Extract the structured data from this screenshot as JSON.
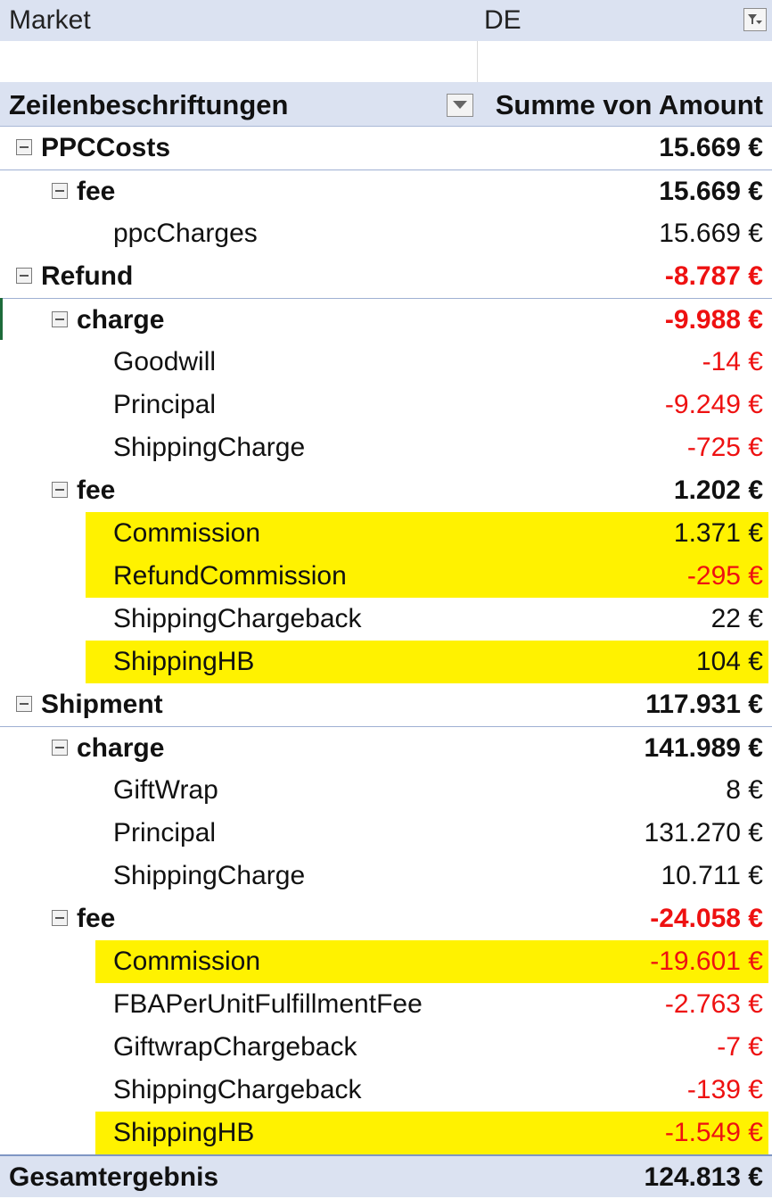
{
  "filter": {
    "label": "Market",
    "value": "DE",
    "icon": "filter-dropdown-icon"
  },
  "header": {
    "row_label": "Zeilenbeschriftungen",
    "value_label": "Summe von Amount",
    "icon": "dropdown-arrow-icon"
  },
  "rows": [
    {
      "label": "PPCCosts",
      "amount": "15.669 €",
      "level": 0,
      "bold": true,
      "collapsible": true,
      "negative": false,
      "highlight": false,
      "separator": false
    },
    {
      "label": "fee",
      "amount": "15.669 €",
      "level": 1,
      "bold": true,
      "collapsible": true,
      "negative": false,
      "highlight": false,
      "separator": true
    },
    {
      "label": "ppcCharges",
      "amount": "15.669 €",
      "level": 2,
      "bold": false,
      "collapsible": false,
      "negative": false,
      "highlight": false,
      "separator": false
    },
    {
      "label": "Refund",
      "amount": "-8.787 €",
      "level": 0,
      "bold": true,
      "collapsible": true,
      "negative": true,
      "highlight": false,
      "separator": false
    },
    {
      "label": "charge",
      "amount": "-9.988 €",
      "level": 1,
      "bold": true,
      "collapsible": true,
      "negative": true,
      "highlight": false,
      "separator": true
    },
    {
      "label": "Goodwill",
      "amount": "-14 €",
      "level": 2,
      "bold": false,
      "collapsible": false,
      "negative": true,
      "highlight": false,
      "separator": false
    },
    {
      "label": "Principal",
      "amount": "-9.249 €",
      "level": 2,
      "bold": false,
      "collapsible": false,
      "negative": true,
      "highlight": false,
      "separator": false
    },
    {
      "label": "ShippingCharge",
      "amount": "-725 €",
      "level": 2,
      "bold": false,
      "collapsible": false,
      "negative": true,
      "highlight": false,
      "separator": false
    },
    {
      "label": "fee",
      "amount": "1.202 €",
      "level": 1,
      "bold": true,
      "collapsible": true,
      "negative": false,
      "highlight": false,
      "separator": false
    },
    {
      "label": "Commission",
      "amount": "1.371 €",
      "level": 2,
      "bold": false,
      "collapsible": false,
      "negative": false,
      "highlight": true,
      "hl_variant": "a",
      "separator": false
    },
    {
      "label": "RefundCommission",
      "amount": "-295 €",
      "level": 2,
      "bold": false,
      "collapsible": false,
      "negative": true,
      "highlight": true,
      "hl_variant": "a",
      "separator": false
    },
    {
      "label": "ShippingChargeback",
      "amount": "22 €",
      "level": 2,
      "bold": false,
      "collapsible": false,
      "negative": false,
      "highlight": false,
      "separator": false
    },
    {
      "label": "ShippingHB",
      "amount": "104 €",
      "level": 2,
      "bold": false,
      "collapsible": false,
      "negative": false,
      "highlight": true,
      "hl_variant": "a",
      "separator": false
    },
    {
      "label": "Shipment",
      "amount": "117.931 €",
      "level": 0,
      "bold": true,
      "collapsible": true,
      "negative": false,
      "highlight": false,
      "separator": false
    },
    {
      "label": "charge",
      "amount": "141.989 €",
      "level": 1,
      "bold": true,
      "collapsible": true,
      "negative": false,
      "highlight": false,
      "separator": true
    },
    {
      "label": "GiftWrap",
      "amount": "8 €",
      "level": 2,
      "bold": false,
      "collapsible": false,
      "negative": false,
      "highlight": false,
      "separator": false
    },
    {
      "label": "Principal",
      "amount": "131.270 €",
      "level": 2,
      "bold": false,
      "collapsible": false,
      "negative": false,
      "highlight": false,
      "separator": false
    },
    {
      "label": "ShippingCharge",
      "amount": "10.711 €",
      "level": 2,
      "bold": false,
      "collapsible": false,
      "negative": false,
      "highlight": false,
      "separator": false
    },
    {
      "label": "fee",
      "amount": "-24.058 €",
      "level": 1,
      "bold": true,
      "collapsible": true,
      "negative": true,
      "highlight": false,
      "separator": false
    },
    {
      "label": "Commission",
      "amount": "-19.601 €",
      "level": 2,
      "bold": false,
      "collapsible": false,
      "negative": true,
      "highlight": true,
      "hl_variant": "b",
      "separator": false
    },
    {
      "label": "FBAPerUnitFulfillmentFee",
      "amount": "-2.763 €",
      "level": 2,
      "bold": false,
      "collapsible": false,
      "negative": true,
      "highlight": false,
      "separator": false
    },
    {
      "label": "GiftwrapChargeback",
      "amount": "-7 €",
      "level": 2,
      "bold": false,
      "collapsible": false,
      "negative": true,
      "highlight": false,
      "separator": false
    },
    {
      "label": "ShippingChargeback",
      "amount": "-139 €",
      "level": 2,
      "bold": false,
      "collapsible": false,
      "negative": true,
      "highlight": false,
      "separator": false
    },
    {
      "label": "ShippingHB",
      "amount": "-1.549 €",
      "level": 2,
      "bold": false,
      "collapsible": false,
      "negative": true,
      "highlight": true,
      "hl_variant": "b",
      "separator": false
    }
  ],
  "total": {
    "label": "Gesamtergebnis",
    "amount": "124.813 €"
  },
  "colors": {
    "header_bg": "#dbe2f1",
    "highlight": "#fff200",
    "negative": "#ee1111",
    "separator": "#9fb0d3"
  }
}
